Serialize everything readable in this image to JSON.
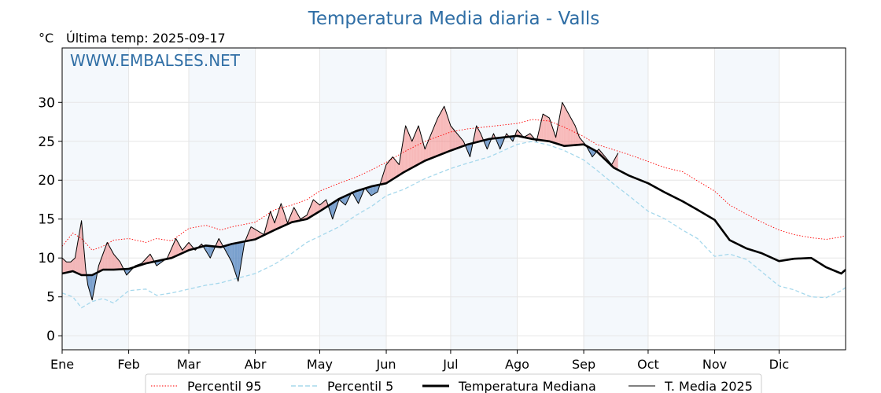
{
  "chart_data": {
    "type": "line",
    "title": "Temperatura Media diaria - Valls",
    "unit_label": "°C",
    "subtitle": "Última temp: 2025-09-17",
    "watermark": "WWW.EMBALSES.NET",
    "x_unit": "day_of_year",
    "xlim": [
      1,
      366
    ],
    "ylim": [
      -1.8,
      37
    ],
    "yticks": [
      0,
      5,
      10,
      15,
      20,
      25,
      30
    ],
    "grid": true,
    "months": [
      {
        "label": "Ene",
        "start": 1,
        "end": 32,
        "shaded": true
      },
      {
        "label": "Feb",
        "start": 32,
        "end": 60,
        "shaded": false
      },
      {
        "label": "Mar",
        "start": 60,
        "end": 91,
        "shaded": true
      },
      {
        "label": "Abr",
        "start": 91,
        "end": 121,
        "shaded": false
      },
      {
        "label": "May",
        "start": 121,
        "end": 152,
        "shaded": true
      },
      {
        "label": "Jun",
        "start": 152,
        "end": 182,
        "shaded": false
      },
      {
        "label": "Jul",
        "start": 182,
        "end": 213,
        "shaded": true
      },
      {
        "label": "Ago",
        "start": 213,
        "end": 244,
        "shaded": false
      },
      {
        "label": "Sep",
        "start": 244,
        "end": 274,
        "shaded": true
      },
      {
        "label": "Oct",
        "start": 274,
        "end": 305,
        "shaded": false
      },
      {
        "label": "Nov",
        "start": 305,
        "end": 335,
        "shaded": true
      },
      {
        "label": "Dic",
        "start": 335,
        "end": 366,
        "shaded": false
      }
    ],
    "series": [
      {
        "key": "p95",
        "name": "Percentil 95",
        "color": "#ff0000",
        "style": "dotted",
        "x": [
          1,
          6,
          10,
          15,
          20,
          25,
          32,
          40,
          45,
          52,
          60,
          68,
          75,
          80,
          91,
          100,
          108,
          115,
          121,
          130,
          138,
          145,
          152,
          160,
          170,
          182,
          190,
          200,
          213,
          220,
          228,
          235,
          244,
          250,
          258,
          265,
          274,
          282,
          290,
          297,
          305,
          312,
          320,
          327,
          335,
          342,
          350,
          357,
          364,
          366
        ],
        "y": [
          11.5,
          13.2,
          12.5,
          11.0,
          11.5,
          12.3,
          12.5,
          12.0,
          12.5,
          12.2,
          13.8,
          14.2,
          13.6,
          14.0,
          14.6,
          16.2,
          16.8,
          17.5,
          18.6,
          19.6,
          20.4,
          21.3,
          22.3,
          23.6,
          25.0,
          26.2,
          26.6,
          26.9,
          27.3,
          27.8,
          27.6,
          26.8,
          25.6,
          24.6,
          23.9,
          23.3,
          22.4,
          21.6,
          21.1,
          19.9,
          18.6,
          16.8,
          15.6,
          14.6,
          13.6,
          13.0,
          12.6,
          12.4,
          12.7,
          12.9
        ]
      },
      {
        "key": "p5",
        "name": "Percentil 5",
        "color": "#a6d8ec",
        "style": "dashed",
        "x": [
          1,
          6,
          10,
          15,
          20,
          25,
          32,
          40,
          45,
          52,
          60,
          68,
          75,
          80,
          91,
          100,
          108,
          115,
          121,
          130,
          138,
          145,
          152,
          160,
          170,
          182,
          190,
          200,
          213,
          220,
          228,
          235,
          244,
          250,
          258,
          265,
          274,
          282,
          290,
          297,
          305,
          312,
          320,
          327,
          335,
          342,
          350,
          357,
          364,
          366
        ],
        "y": [
          5.5,
          5.0,
          3.6,
          4.4,
          4.8,
          4.2,
          5.8,
          6.0,
          5.2,
          5.5,
          6.0,
          6.5,
          6.8,
          7.2,
          8.0,
          9.2,
          10.6,
          12.0,
          12.8,
          14.0,
          15.5,
          16.6,
          18.0,
          18.8,
          20.2,
          21.5,
          22.2,
          23.0,
          24.6,
          25.0,
          24.5,
          23.8,
          22.6,
          21.3,
          19.5,
          18.0,
          16.0,
          15.0,
          13.6,
          12.5,
          10.2,
          10.5,
          9.8,
          8.2,
          6.4,
          5.9,
          5.0,
          4.9,
          5.8,
          6.2
        ]
      },
      {
        "key": "median",
        "name": "Temperatura Mediana",
        "color": "#000000",
        "style": "solid",
        "x": [
          1,
          6,
          10,
          15,
          20,
          25,
          32,
          40,
          45,
          52,
          60,
          68,
          75,
          80,
          91,
          100,
          108,
          115,
          121,
          130,
          138,
          145,
          152,
          160,
          170,
          182,
          190,
          200,
          213,
          220,
          228,
          235,
          244,
          250,
          258,
          265,
          274,
          282,
          290,
          297,
          305,
          312,
          320,
          327,
          335,
          342,
          350,
          357,
          364,
          366
        ],
        "y": [
          8.0,
          8.3,
          7.8,
          7.8,
          8.5,
          8.5,
          8.6,
          9.3,
          9.6,
          10.0,
          11.0,
          11.6,
          11.4,
          11.8,
          12.4,
          13.6,
          14.6,
          15.0,
          16.0,
          17.6,
          18.6,
          19.2,
          19.6,
          21.0,
          22.5,
          23.8,
          24.6,
          25.3,
          25.7,
          25.3,
          25.0,
          24.4,
          24.6,
          23.7,
          21.6,
          20.6,
          19.6,
          18.4,
          17.3,
          16.2,
          14.9,
          12.3,
          11.2,
          10.6,
          9.6,
          9.9,
          10.0,
          8.8,
          8.0,
          8.5
        ]
      },
      {
        "key": "t2025",
        "name": "T. Media 2025",
        "color": "#000000",
        "style": "thin",
        "x": [
          1,
          3,
          5,
          7,
          10,
          12,
          13,
          15,
          18,
          22,
          25,
          28,
          31,
          35,
          38,
          42,
          45,
          50,
          54,
          57,
          60,
          63,
          66,
          70,
          74,
          77,
          80,
          83,
          86,
          89,
          92,
          95,
          98,
          100,
          103,
          106,
          109,
          112,
          115,
          118,
          121,
          124,
          127,
          130,
          133,
          136,
          139,
          142,
          145,
          148,
          152,
          155,
          158,
          161,
          164,
          167,
          170,
          173,
          176,
          179,
          182,
          185,
          188,
          191,
          194,
          196,
          199,
          202,
          205,
          208,
          211,
          213,
          216,
          219,
          222,
          225,
          228,
          231,
          234,
          237,
          240,
          242,
          245,
          248,
          251,
          254,
          257,
          260
        ],
        "y": [
          10.0,
          9.5,
          9.5,
          10.0,
          14.8,
          8.5,
          6.5,
          4.6,
          9.0,
          12.0,
          10.5,
          9.5,
          7.8,
          9.0,
          9.3,
          10.5,
          9.0,
          10.0,
          12.5,
          11.0,
          12.0,
          11.0,
          11.8,
          10.0,
          12.5,
          11.0,
          9.5,
          7.0,
          12.0,
          14.0,
          13.5,
          13.0,
          16.0,
          14.5,
          17.0,
          14.5,
          16.5,
          15.0,
          15.5,
          17.5,
          16.8,
          17.5,
          15.0,
          17.5,
          16.8,
          18.5,
          17.0,
          19.0,
          18.0,
          18.5,
          22.0,
          23.0,
          22.0,
          27.0,
          25.0,
          27.0,
          24.0,
          26.0,
          28.0,
          29.5,
          27.0,
          26.0,
          25.0,
          23.0,
          27.0,
          26.0,
          24.0,
          26.0,
          24.0,
          26.0,
          25.0,
          26.5,
          25.5,
          26.0,
          25.0,
          28.5,
          28.0,
          25.5,
          30.0,
          28.5,
          27.0,
          25.5,
          24.5,
          23.0,
          24.0,
          23.0,
          22.0,
          23.5
        ]
      }
    ],
    "fill_above_color": "#f08080",
    "fill_below_color": "#4f81bd",
    "legend": {
      "position": "bottom-center",
      "items": [
        {
          "label": "Percentil 95",
          "ref": "p95"
        },
        {
          "label": "Percentil 5",
          "ref": "p5"
        },
        {
          "label": "Temperatura Mediana",
          "ref": "median"
        },
        {
          "label": "T. Media 2025",
          "ref": "t2025"
        }
      ]
    }
  }
}
